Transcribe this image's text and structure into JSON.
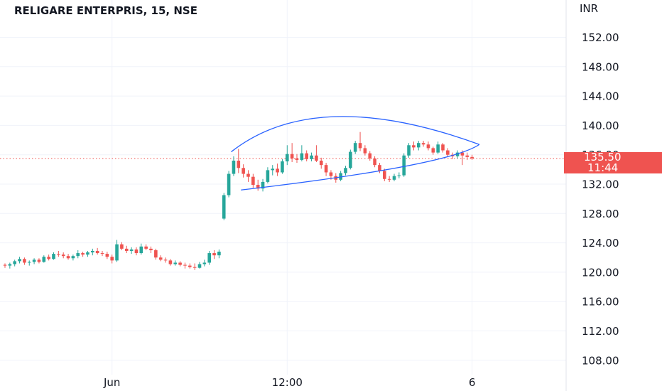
{
  "chart_data": {
    "type": "candlestick",
    "title": "RELIGARE ENTERPRIS, 15, NSE",
    "currency": "INR",
    "ylim": [
      106,
      154
    ],
    "y_ticks": [
      108,
      112,
      116,
      120,
      124,
      128,
      132,
      136,
      140,
      144,
      148,
      152
    ],
    "y_tick_labels": [
      "108.00",
      "112.00",
      "116.00",
      "120.00",
      "124.00",
      "128.00",
      "132.00",
      "136.00",
      "140.00",
      "144.00",
      "148.00",
      "152.00"
    ],
    "x_labels": [
      {
        "label": "Jun",
        "bar": 22
      },
      {
        "label": "12:00",
        "bar": 58
      },
      {
        "label": "6",
        "bar": 96
      }
    ],
    "current_price": "135.50",
    "countdown": "11:44",
    "colors": {
      "up": "#26a69a",
      "down": "#ef5350",
      "pattern": "#2962ff",
      "price_line": "#ef5350",
      "grid": "#f0f3fa"
    },
    "candles": [
      [
        121.0,
        121.2,
        120.6,
        120.9
      ],
      [
        120.9,
        121.3,
        120.5,
        121.1
      ],
      [
        121.1,
        121.7,
        120.8,
        121.5
      ],
      [
        121.5,
        122.1,
        121.2,
        121.8
      ],
      [
        121.8,
        122.0,
        121.0,
        121.3
      ],
      [
        121.3,
        121.6,
        120.9,
        121.4
      ],
      [
        121.4,
        121.9,
        121.1,
        121.7
      ],
      [
        121.7,
        121.9,
        121.2,
        121.4
      ],
      [
        121.4,
        122.3,
        121.3,
        122.1
      ],
      [
        122.1,
        122.4,
        121.6,
        121.8
      ],
      [
        121.8,
        122.7,
        121.7,
        122.5
      ],
      [
        122.5,
        122.9,
        122.1,
        122.4
      ],
      [
        122.4,
        122.7,
        121.9,
        122.2
      ],
      [
        122.2,
        122.5,
        121.7,
        121.9
      ],
      [
        121.9,
        122.4,
        121.6,
        122.2
      ],
      [
        122.2,
        123.0,
        121.9,
        122.6
      ],
      [
        122.6,
        122.8,
        122.1,
        122.4
      ],
      [
        122.4,
        122.9,
        122.1,
        122.7
      ],
      [
        122.7,
        123.2,
        122.3,
        122.9
      ],
      [
        122.9,
        123.3,
        122.4,
        122.6
      ],
      [
        122.6,
        122.9,
        122.2,
        122.5
      ],
      [
        122.5,
        122.8,
        121.8,
        122.1
      ],
      [
        122.1,
        122.4,
        121.2,
        121.6
      ],
      [
        121.6,
        124.4,
        121.4,
        123.8
      ],
      [
        123.8,
        124.1,
        123.0,
        123.2
      ],
      [
        123.2,
        123.6,
        122.6,
        122.9
      ],
      [
        122.9,
        123.4,
        122.5,
        123.1
      ],
      [
        123.1,
        123.4,
        122.3,
        122.6
      ],
      [
        122.6,
        123.9,
        122.4,
        123.5
      ],
      [
        123.5,
        123.8,
        123.0,
        123.2
      ],
      [
        123.2,
        123.5,
        122.6,
        123.0
      ],
      [
        123.0,
        123.2,
        121.7,
        122.0
      ],
      [
        122.0,
        122.3,
        121.5,
        121.7
      ],
      [
        121.7,
        122.0,
        121.3,
        121.6
      ],
      [
        121.6,
        121.8,
        120.9,
        121.1
      ],
      [
        121.1,
        121.6,
        120.9,
        121.3
      ],
      [
        121.3,
        121.5,
        120.8,
        121.0
      ],
      [
        121.0,
        121.3,
        120.5,
        120.9
      ],
      [
        120.9,
        121.2,
        120.5,
        120.7
      ],
      [
        120.7,
        121.2,
        120.3,
        120.6
      ],
      [
        120.6,
        121.4,
        120.5,
        121.1
      ],
      [
        121.1,
        121.7,
        120.8,
        121.3
      ],
      [
        121.3,
        122.9,
        121.0,
        122.6
      ],
      [
        122.6,
        123.0,
        121.8,
        122.3
      ],
      [
        122.3,
        123.1,
        121.9,
        122.8
      ],
      [
        127.3,
        130.8,
        127.1,
        130.5
      ],
      [
        130.5,
        133.8,
        130.2,
        133.4
      ],
      [
        133.4,
        135.8,
        133.1,
        135.2
      ],
      [
        135.2,
        136.8,
        133.5,
        134.2
      ],
      [
        134.2,
        134.7,
        132.9,
        133.4
      ],
      [
        133.4,
        133.9,
        132.3,
        133.0
      ],
      [
        133.0,
        133.4,
        131.5,
        131.9
      ],
      [
        131.9,
        132.6,
        131.1,
        131.4
      ],
      [
        131.4,
        132.7,
        131.0,
        132.3
      ],
      [
        132.3,
        134.3,
        132.1,
        133.9
      ],
      [
        133.9,
        134.6,
        133.2,
        134.1
      ],
      [
        134.1,
        134.8,
        133.1,
        133.6
      ],
      [
        133.6,
        135.4,
        133.4,
        135.1
      ],
      [
        135.1,
        137.3,
        134.6,
        136.1
      ],
      [
        136.1,
        137.6,
        135.0,
        135.5
      ],
      [
        135.5,
        136.1,
        134.9,
        135.3
      ],
      [
        135.3,
        137.3,
        135.1,
        136.2
      ],
      [
        136.2,
        136.6,
        135.1,
        135.4
      ],
      [
        135.4,
        136.3,
        135.1,
        135.9
      ],
      [
        135.9,
        137.3,
        135.0,
        135.2
      ],
      [
        135.2,
        135.6,
        134.1,
        134.6
      ],
      [
        134.6,
        134.9,
        133.1,
        133.6
      ],
      [
        133.6,
        133.9,
        132.6,
        133.1
      ],
      [
        133.1,
        133.5,
        132.2,
        132.6
      ],
      [
        132.6,
        133.8,
        132.4,
        133.5
      ],
      [
        133.5,
        134.5,
        133.2,
        134.2
      ],
      [
        134.2,
        136.7,
        134.0,
        136.4
      ],
      [
        136.4,
        137.9,
        136.1,
        137.6
      ],
      [
        137.6,
        139.1,
        136.5,
        136.9
      ],
      [
        136.9,
        137.3,
        135.9,
        136.2
      ],
      [
        136.2,
        136.5,
        135.2,
        135.5
      ],
      [
        135.5,
        135.8,
        134.3,
        134.6
      ],
      [
        134.6,
        134.9,
        133.5,
        133.8
      ],
      [
        133.8,
        134.1,
        132.4,
        132.7
      ],
      [
        132.7,
        133.1,
        132.3,
        132.6
      ],
      [
        132.6,
        133.4,
        132.4,
        133.1
      ],
      [
        133.1,
        133.6,
        132.8,
        133.2
      ],
      [
        133.2,
        136.2,
        133.0,
        135.9
      ],
      [
        135.9,
        137.6,
        135.6,
        137.3
      ],
      [
        137.3,
        137.8,
        136.6,
        137.0
      ],
      [
        137.0,
        137.9,
        136.6,
        137.6
      ],
      [
        137.6,
        137.9,
        137.1,
        137.4
      ],
      [
        137.4,
        137.8,
        136.6,
        136.9
      ],
      [
        136.9,
        137.1,
        136.0,
        136.3
      ],
      [
        136.3,
        137.8,
        136.1,
        137.4
      ],
      [
        137.4,
        137.6,
        136.3,
        136.6
      ],
      [
        136.6,
        136.9,
        135.7,
        136.0
      ],
      [
        136.0,
        136.3,
        135.4,
        135.8
      ],
      [
        135.8,
        136.6,
        135.5,
        136.3
      ],
      [
        136.3,
        136.6,
        134.6,
        135.9
      ],
      [
        135.9,
        136.3,
        135.3,
        135.7
      ],
      [
        135.7,
        136.0,
        135.3,
        135.5
      ]
    ],
    "annotations": [
      {
        "type": "trendline-curve",
        "name": "upper-boundary",
        "from": {
          "bar": 46.5,
          "price": 136.4
        },
        "via": {
          "bar": 68,
          "price": 141.2
        },
        "to": {
          "bar": 97.5,
          "price": 137.4
        }
      },
      {
        "type": "trendline-curve",
        "name": "lower-boundary",
        "from": {
          "bar": 48.5,
          "price": 131.2
        },
        "via": {
          "bar": 82,
          "price": 134.4
        },
        "to": {
          "bar": 97.5,
          "price": 137.4
        }
      }
    ]
  }
}
